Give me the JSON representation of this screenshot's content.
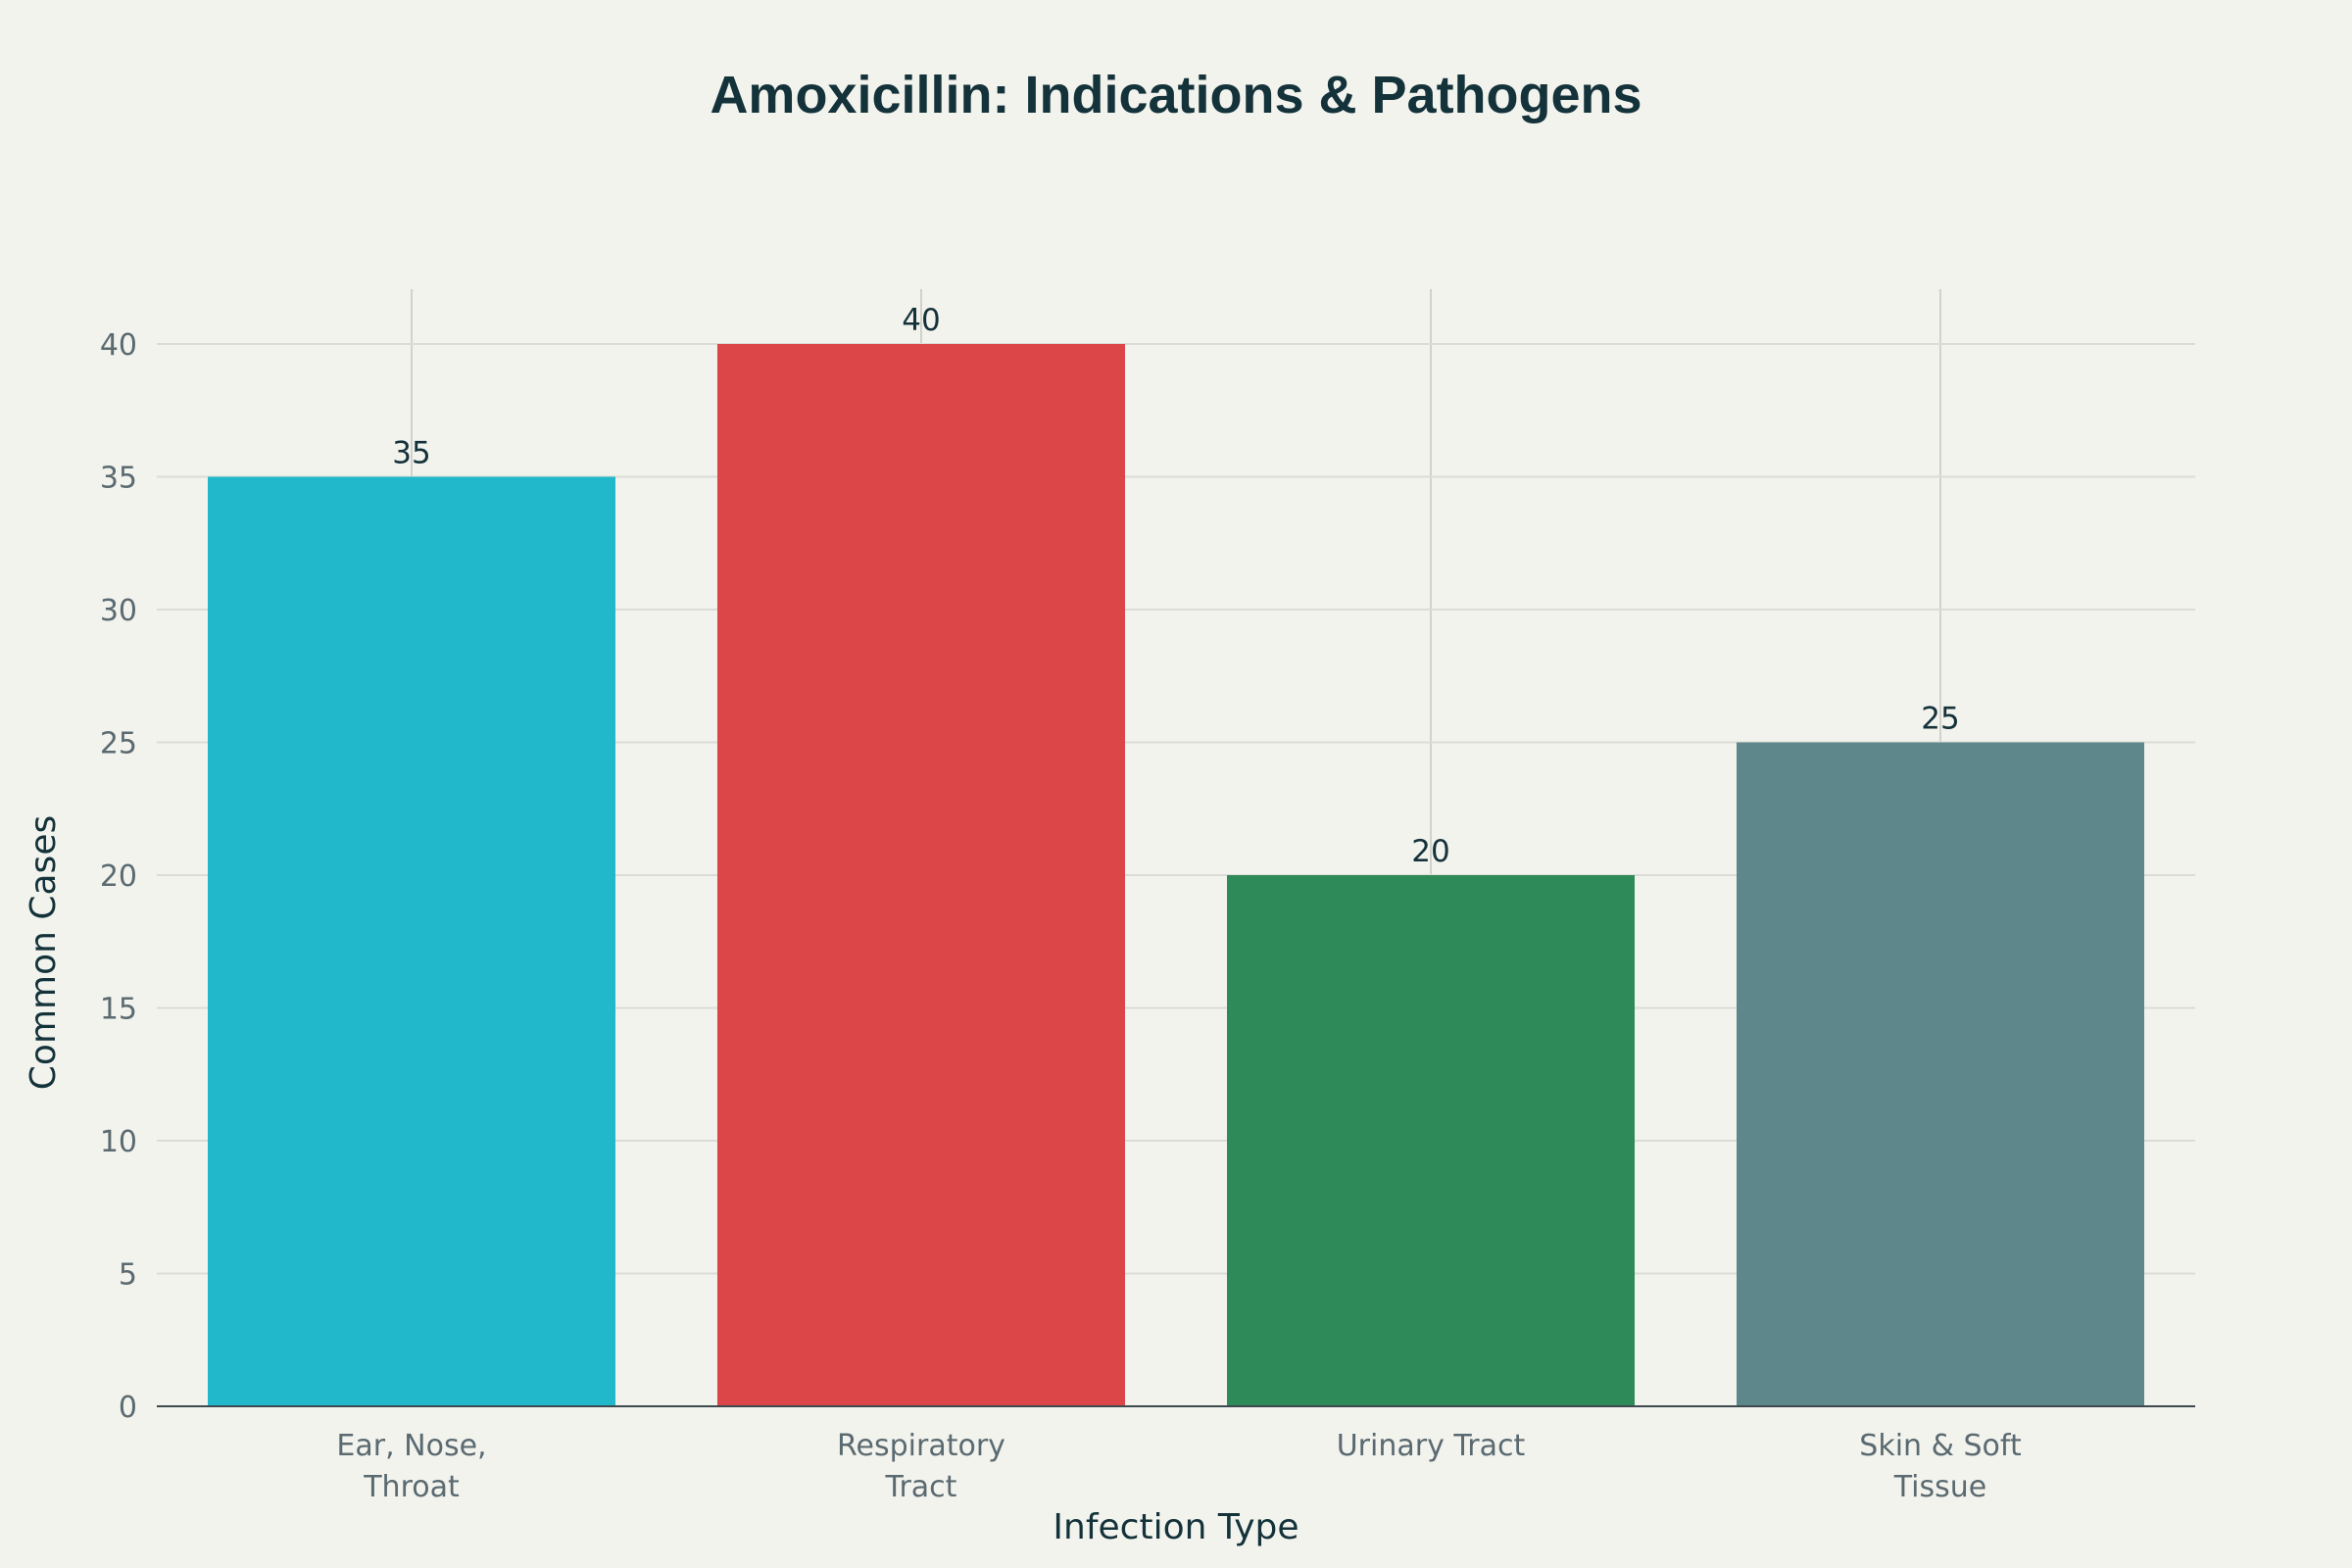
{
  "chart_data": {
    "type": "bar",
    "title": "Amoxicillin: Indications & Pathogens",
    "xlabel": "Infection Type",
    "ylabel": "Common Cases",
    "ylim": [
      0,
      42
    ],
    "yticks": [
      0,
      5,
      10,
      15,
      20,
      25,
      30,
      35,
      40
    ],
    "grid": true,
    "categories": [
      [
        "Ear, Nose,",
        "Throat"
      ],
      [
        "Respiratory",
        "Tract"
      ],
      [
        "Urinary Tract"
      ],
      [
        "Skin & Soft",
        "Tissue"
      ]
    ],
    "values": [
      35,
      40,
      20,
      25
    ],
    "data_labels": [
      "35",
      "40",
      "20",
      "25"
    ],
    "colors": [
      "#21b8cb",
      "#dc4648",
      "#2f8a59",
      "#5e878c"
    ]
  }
}
